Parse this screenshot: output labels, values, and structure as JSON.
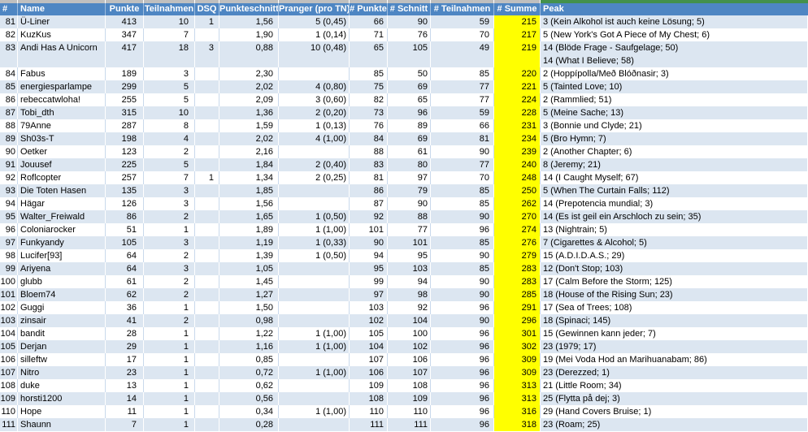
{
  "colors": {
    "header_bg": "#4e86c3",
    "band_row_bg": "#dce6f1",
    "highlight_column_bg": "#ffff00",
    "top_strip_gray": "#bfbfbf",
    "top_strip_green": "#43914c"
  },
  "table": {
    "columns": [
      {
        "key": "rank",
        "label": "#"
      },
      {
        "key": "name",
        "label": "Name"
      },
      {
        "key": "punkte",
        "label": "Punkte"
      },
      {
        "key": "teilnahmen",
        "label": "Teilnahmen"
      },
      {
        "key": "dsq",
        "label": "DSQ"
      },
      {
        "key": "punkteschnitt",
        "label": "Punkteschnitt"
      },
      {
        "key": "pranger",
        "label": "Pranger (pro TN)"
      },
      {
        "key": "hpunkte",
        "label": "# Punkte"
      },
      {
        "key": "hschnitt",
        "label": "# Schnitt"
      },
      {
        "key": "hteilnahmen",
        "label": "# Teilnahmen"
      },
      {
        "key": "hsumme",
        "label": "# Summe"
      },
      {
        "key": "peak",
        "label": "Peak"
      }
    ],
    "rows": [
      {
        "rank": "81",
        "name": "Ü-Liner",
        "punkte": "413",
        "teilnahmen": "10",
        "dsq": "1",
        "punkteschnitt": "1,56",
        "pranger": "5 (0,45)",
        "hpunkte": "66",
        "hschnitt": "90",
        "hteilnahmen": "59",
        "hsumme": "215",
        "peak": [
          "3 (Kein Alkohol ist auch keine Lösung; 5)"
        ]
      },
      {
        "rank": "82",
        "name": "KuzKus",
        "punkte": "347",
        "teilnahmen": "7",
        "dsq": "",
        "punkteschnitt": "1,90",
        "pranger": "1 (0,14)",
        "hpunkte": "71",
        "hschnitt": "76",
        "hteilnahmen": "70",
        "hsumme": "217",
        "peak": [
          "5 (New York's Got A Piece of My Chest; 6)"
        ]
      },
      {
        "rank": "83",
        "name": "Andi Has A Unicorn",
        "punkte": "417",
        "teilnahmen": "18",
        "dsq": "3",
        "punkteschnitt": "0,88",
        "pranger": "10 (0,48)",
        "hpunkte": "65",
        "hschnitt": "105",
        "hteilnahmen": "49",
        "hsumme": "219",
        "peak": [
          "14 (Blöde Frage - Saufgelage; 50)",
          "14 (What I Believe; 58)"
        ]
      },
      {
        "rank": "84",
        "name": "Fabus",
        "punkte": "189",
        "teilnahmen": "3",
        "dsq": "",
        "punkteschnitt": "2,30",
        "pranger": "",
        "hpunkte": "85",
        "hschnitt": "50",
        "hteilnahmen": "85",
        "hsumme": "220",
        "peak": [
          "2 (Hoppípolla/Með Blóðnasir; 3)"
        ]
      },
      {
        "rank": "85",
        "name": "energiesparlampe",
        "punkte": "299",
        "teilnahmen": "5",
        "dsq": "",
        "punkteschnitt": "2,02",
        "pranger": "4 (0,80)",
        "hpunkte": "75",
        "hschnitt": "69",
        "hteilnahmen": "77",
        "hsumme": "221",
        "peak": [
          "5 (Tainted Love; 10)"
        ]
      },
      {
        "rank": "86",
        "name": "rebeccatwloha!",
        "punkte": "255",
        "teilnahmen": "5",
        "dsq": "",
        "punkteschnitt": "2,09",
        "pranger": "3 (0,60)",
        "hpunkte": "82",
        "hschnitt": "65",
        "hteilnahmen": "77",
        "hsumme": "224",
        "peak": [
          "2 (Rammlied; 51)"
        ]
      },
      {
        "rank": "87",
        "name": "Tobi_dth",
        "punkte": "315",
        "teilnahmen": "10",
        "dsq": "",
        "punkteschnitt": "1,36",
        "pranger": "2 (0,20)",
        "hpunkte": "73",
        "hschnitt": "96",
        "hteilnahmen": "59",
        "hsumme": "228",
        "peak": [
          "5 (Meine Sache; 13)"
        ]
      },
      {
        "rank": "88",
        "name": "79Anne",
        "punkte": "287",
        "teilnahmen": "8",
        "dsq": "",
        "punkteschnitt": "1,59",
        "pranger": "1 (0,13)",
        "hpunkte": "76",
        "hschnitt": "89",
        "hteilnahmen": "66",
        "hsumme": "231",
        "peak": [
          "3 (Bonnie und Clyde; 21)"
        ]
      },
      {
        "rank": "89",
        "name": "Sh03s-T",
        "punkte": "198",
        "teilnahmen": "4",
        "dsq": "",
        "punkteschnitt": "2,02",
        "pranger": "4 (1,00)",
        "hpunkte": "84",
        "hschnitt": "69",
        "hteilnahmen": "81",
        "hsumme": "234",
        "peak": [
          "5 (Bro Hymn; 7)"
        ]
      },
      {
        "rank": "90",
        "name": "Oetker",
        "punkte": "123",
        "teilnahmen": "2",
        "dsq": "",
        "punkteschnitt": "2,16",
        "pranger": "",
        "hpunkte": "88",
        "hschnitt": "61",
        "hteilnahmen": "90",
        "hsumme": "239",
        "peak": [
          "2 (Another Chapter; 6)"
        ]
      },
      {
        "rank": "91",
        "name": "Jouusef",
        "punkte": "225",
        "teilnahmen": "5",
        "dsq": "",
        "punkteschnitt": "1,84",
        "pranger": "2 (0,40)",
        "hpunkte": "83",
        "hschnitt": "80",
        "hteilnahmen": "77",
        "hsumme": "240",
        "peak": [
          "8 (Jeremy; 21)"
        ]
      },
      {
        "rank": "92",
        "name": "Roflcopter",
        "punkte": "257",
        "teilnahmen": "7",
        "dsq": "1",
        "punkteschnitt": "1,34",
        "pranger": "2 (0,25)",
        "hpunkte": "81",
        "hschnitt": "97",
        "hteilnahmen": "70",
        "hsumme": "248",
        "peak": [
          "14 (I Caught Myself; 67)"
        ]
      },
      {
        "rank": "93",
        "name": "Die Toten Hasen",
        "punkte": "135",
        "teilnahmen": "3",
        "dsq": "",
        "punkteschnitt": "1,85",
        "pranger": "",
        "hpunkte": "86",
        "hschnitt": "79",
        "hteilnahmen": "85",
        "hsumme": "250",
        "peak": [
          "5 (When The Curtain Falls; 112)"
        ]
      },
      {
        "rank": "94",
        "name": "Hägar",
        "punkte": "126",
        "teilnahmen": "3",
        "dsq": "",
        "punkteschnitt": "1,56",
        "pranger": "",
        "hpunkte": "87",
        "hschnitt": "90",
        "hteilnahmen": "85",
        "hsumme": "262",
        "peak": [
          "14 (Prepotencia mundial; 3)"
        ]
      },
      {
        "rank": "95",
        "name": "Walter_Freiwald",
        "punkte": "86",
        "teilnahmen": "2",
        "dsq": "",
        "punkteschnitt": "1,65",
        "pranger": "1 (0,50)",
        "hpunkte": "92",
        "hschnitt": "88",
        "hteilnahmen": "90",
        "hsumme": "270",
        "peak": [
          "14 (Es ist geil ein Arschloch zu sein; 35)"
        ]
      },
      {
        "rank": "96",
        "name": "Coloniarocker",
        "punkte": "51",
        "teilnahmen": "1",
        "dsq": "",
        "punkteschnitt": "1,89",
        "pranger": "1 (1,00)",
        "hpunkte": "101",
        "hschnitt": "77",
        "hteilnahmen": "96",
        "hsumme": "274",
        "peak": [
          "13 (Nightrain; 5)"
        ]
      },
      {
        "rank": "97",
        "name": "Funkyandy",
        "punkte": "105",
        "teilnahmen": "3",
        "dsq": "",
        "punkteschnitt": "1,19",
        "pranger": "1 (0,33)",
        "hpunkte": "90",
        "hschnitt": "101",
        "hteilnahmen": "85",
        "hsumme": "276",
        "peak": [
          "7 (Cigarettes & Alcohol; 5)"
        ]
      },
      {
        "rank": "98",
        "name": "Lucifer[93]",
        "punkte": "64",
        "teilnahmen": "2",
        "dsq": "",
        "punkteschnitt": "1,39",
        "pranger": "1 (0,50)",
        "hpunkte": "94",
        "hschnitt": "95",
        "hteilnahmen": "90",
        "hsumme": "279",
        "peak": [
          "15 (A.D.I.D.A.S.; 29)"
        ]
      },
      {
        "rank": "99",
        "name": "Ariyena",
        "punkte": "64",
        "teilnahmen": "3",
        "dsq": "",
        "punkteschnitt": "1,05",
        "pranger": "",
        "hpunkte": "95",
        "hschnitt": "103",
        "hteilnahmen": "85",
        "hsumme": "283",
        "peak": [
          "12 (Don't Stop; 103)"
        ]
      },
      {
        "rank": "100",
        "name": "glubb",
        "punkte": "61",
        "teilnahmen": "2",
        "dsq": "",
        "punkteschnitt": "1,45",
        "pranger": "",
        "hpunkte": "99",
        "hschnitt": "94",
        "hteilnahmen": "90",
        "hsumme": "283",
        "peak": [
          "17 (Calm Before the Storm; 125)"
        ]
      },
      {
        "rank": "101",
        "name": "Bloem74",
        "punkte": "62",
        "teilnahmen": "2",
        "dsq": "",
        "punkteschnitt": "1,27",
        "pranger": "",
        "hpunkte": "97",
        "hschnitt": "98",
        "hteilnahmen": "90",
        "hsumme": "285",
        "peak": [
          "18 (House of the Rising Sun; 23)"
        ]
      },
      {
        "rank": "102",
        "name": "Guggi",
        "punkte": "36",
        "teilnahmen": "1",
        "dsq": "",
        "punkteschnitt": "1,50",
        "pranger": "",
        "hpunkte": "103",
        "hschnitt": "92",
        "hteilnahmen": "96",
        "hsumme": "291",
        "peak": [
          "17 (Sea of Trees; 108)"
        ]
      },
      {
        "rank": "103",
        "name": "zinsair",
        "punkte": "41",
        "teilnahmen": "2",
        "dsq": "",
        "punkteschnitt": "0,98",
        "pranger": "",
        "hpunkte": "102",
        "hschnitt": "104",
        "hteilnahmen": "90",
        "hsumme": "296",
        "peak": [
          "18 (Spinaci; 145)"
        ]
      },
      {
        "rank": "104",
        "name": "bandit",
        "punkte": "28",
        "teilnahmen": "1",
        "dsq": "",
        "punkteschnitt": "1,22",
        "pranger": "1 (1,00)",
        "hpunkte": "105",
        "hschnitt": "100",
        "hteilnahmen": "96",
        "hsumme": "301",
        "peak": [
          "15 (Gewinnen kann jeder; 7)"
        ]
      },
      {
        "rank": "105",
        "name": "Derjan",
        "punkte": "29",
        "teilnahmen": "1",
        "dsq": "",
        "punkteschnitt": "1,16",
        "pranger": "1 (1,00)",
        "hpunkte": "104",
        "hschnitt": "102",
        "hteilnahmen": "96",
        "hsumme": "302",
        "peak": [
          "23 (1979; 17)"
        ]
      },
      {
        "rank": "106",
        "name": "silleftw",
        "punkte": "17",
        "teilnahmen": "1",
        "dsq": "",
        "punkteschnitt": "0,85",
        "pranger": "",
        "hpunkte": "107",
        "hschnitt": "106",
        "hteilnahmen": "96",
        "hsumme": "309",
        "peak": [
          "19 (Mei Voda Hod an Marihuanabam; 86)"
        ]
      },
      {
        "rank": "107",
        "name": "Nitro",
        "punkte": "23",
        "teilnahmen": "1",
        "dsq": "",
        "punkteschnitt": "0,72",
        "pranger": "1 (1,00)",
        "hpunkte": "106",
        "hschnitt": "107",
        "hteilnahmen": "96",
        "hsumme": "309",
        "peak": [
          "23 (Derezzed; 1)"
        ]
      },
      {
        "rank": "108",
        "name": "duke",
        "punkte": "13",
        "teilnahmen": "1",
        "dsq": "",
        "punkteschnitt": "0,62",
        "pranger": "",
        "hpunkte": "109",
        "hschnitt": "108",
        "hteilnahmen": "96",
        "hsumme": "313",
        "peak": [
          "21 (Little Room; 34)"
        ]
      },
      {
        "rank": "109",
        "name": "horsti1200",
        "punkte": "14",
        "teilnahmen": "1",
        "dsq": "",
        "punkteschnitt": "0,56",
        "pranger": "",
        "hpunkte": "108",
        "hschnitt": "109",
        "hteilnahmen": "96",
        "hsumme": "313",
        "peak": [
          "25 (Flytta på dej; 3)"
        ]
      },
      {
        "rank": "110",
        "name": "Hope",
        "punkte": "11",
        "teilnahmen": "1",
        "dsq": "",
        "punkteschnitt": "0,34",
        "pranger": "1 (1,00)",
        "hpunkte": "110",
        "hschnitt": "110",
        "hteilnahmen": "96",
        "hsumme": "316",
        "peak": [
          "29 (Hand Covers Bruise; 1)"
        ]
      },
      {
        "rank": "111",
        "name": "Shaunn",
        "punkte": "7",
        "teilnahmen": "1",
        "dsq": "",
        "punkteschnitt": "0,28",
        "pranger": "",
        "hpunkte": "111",
        "hschnitt": "111",
        "hteilnahmen": "96",
        "hsumme": "318",
        "peak": [
          "23 (Roam; 25)"
        ]
      }
    ]
  }
}
